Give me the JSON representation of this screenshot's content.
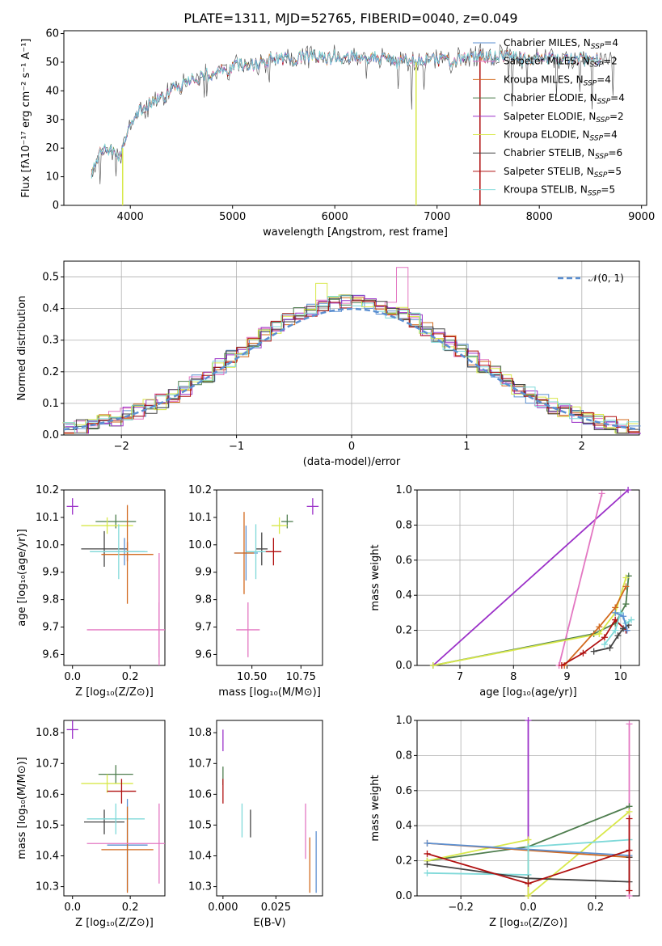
{
  "title": "PLATE=1311, MJD=52765, FIBERID=0040, z=0.049",
  "colors": {
    "chabrier_miles": "#5b8fd1",
    "salpeter_miles": "#e377c2",
    "kroupa_miles": "#d2691e",
    "chabrier_elodie": "#4e7d4e",
    "salpeter_elodie": "#9b30c8",
    "kroupa_elodie": "#d8e84a",
    "chabrier_stelib": "#444444",
    "salpeter_stelib": "#b01010",
    "kroupa_stelib": "#7fd9d9",
    "normal": "#5b8fd1"
  },
  "chart_data": [
    {
      "type": "line",
      "title": "PLATE=1311, MJD=52765, FIBERID=0040, z=0.049",
      "xlabel": "wavelength [Angstrom, rest frame]",
      "ylabel": "Flux [fλ10⁻¹⁷ erg cm⁻² s⁻¹ A⁻¹]",
      "xlim": [
        3350,
        9050
      ],
      "ylim": [
        0,
        61
      ],
      "xticks": [
        4000,
        5000,
        6000,
        7000,
        8000,
        9000
      ],
      "yticks": [
        0,
        10,
        20,
        30,
        40,
        50,
        60
      ],
      "legend_position": "top-right",
      "series": [
        {
          "name": "Chabrier MILES, N_SSP=4",
          "color_key": "chabrier_miles"
        },
        {
          "name": "Salpeter MILES, N_SSP=2",
          "color_key": "salpeter_miles"
        },
        {
          "name": "Kroupa MILES, N_SSP=4",
          "color_key": "kroupa_miles"
        },
        {
          "name": "Chabrier ELODIE, N_SSP=4",
          "color_key": "chabrier_elodie"
        },
        {
          "name": "Salpeter ELODIE, N_SSP=2",
          "color_key": "salpeter_elodie"
        },
        {
          "name": "Kroupa ELODIE, N_SSP=4",
          "color_key": "kroupa_elodie"
        },
        {
          "name": "Chabrier STELIB, N_SSP=6",
          "color_key": "chabrier_stelib"
        },
        {
          "name": "Salpeter STELIB, N_SSP=5",
          "color_key": "salpeter_stelib"
        },
        {
          "name": "Kroupa STELIB, N_SSP=5",
          "color_key": "kroupa_stelib"
        }
      ],
      "continuum": [
        [
          3620,
          12
        ],
        [
          3700,
          18
        ],
        [
          3800,
          20
        ],
        [
          3900,
          17
        ],
        [
          3950,
          23
        ],
        [
          4000,
          30
        ],
        [
          4100,
          33
        ],
        [
          4200,
          36
        ],
        [
          4300,
          37
        ],
        [
          4400,
          40
        ],
        [
          4500,
          42
        ],
        [
          4600,
          44
        ],
        [
          4700,
          45
        ],
        [
          4800,
          46
        ],
        [
          4900,
          47
        ],
        [
          5000,
          48
        ],
        [
          5100,
          49
        ],
        [
          5200,
          49
        ],
        [
          5300,
          50
        ],
        [
          5400,
          51
        ],
        [
          5500,
          51
        ],
        [
          5600,
          51
        ],
        [
          5700,
          52
        ],
        [
          5800,
          52
        ],
        [
          5900,
          51
        ],
        [
          6000,
          52
        ],
        [
          6100,
          52
        ],
        [
          6200,
          52
        ],
        [
          6300,
          52
        ],
        [
          6400,
          52
        ],
        [
          6500,
          51
        ],
        [
          6600,
          50
        ],
        [
          6700,
          51
        ],
        [
          6800,
          50
        ],
        [
          6900,
          51
        ],
        [
          7000,
          51
        ],
        [
          7100,
          50
        ],
        [
          7200,
          51
        ],
        [
          7300,
          51
        ],
        [
          7400,
          52
        ],
        [
          7500,
          52
        ],
        [
          7600,
          52
        ],
        [
          7700,
          52
        ],
        [
          7800,
          51
        ],
        [
          8000,
          51
        ],
        [
          8200,
          51
        ],
        [
          8400,
          51
        ],
        [
          8600,
          51
        ],
        [
          8750,
          50
        ]
      ],
      "dropouts": [
        {
          "x": 3925,
          "color_key": "kroupa_elodie"
        },
        {
          "x": 6795,
          "color_key": "kroupa_elodie"
        },
        {
          "x": 7420,
          "color_key": "salpeter_stelib"
        }
      ]
    },
    {
      "type": "line",
      "xlabel": "(data-model)/error",
      "ylabel": "Normed distribution",
      "xlim": [
        -2.5,
        2.5
      ],
      "ylim": [
        0,
        0.55
      ],
      "xticks": [
        -2,
        -1,
        0,
        1,
        2
      ],
      "yticks": [
        0.0,
        0.1,
        0.2,
        0.3,
        0.4,
        0.5
      ],
      "grid": true,
      "legend_position": "top-right",
      "normal_label": "𝒩(0, 1)",
      "bin_width": 0.1,
      "series_offsets": [
        0.012,
        -0.01,
        0.006,
        -0.004,
        0.014,
        -0.012,
        0.008,
        0.0,
        -0.006
      ],
      "highlight_bins": [
        {
          "x": 0.45,
          "value": 0.53,
          "color_key": "salpeter_miles"
        },
        {
          "x": -0.25,
          "value": 0.48,
          "color_key": "kroupa_elodie"
        }
      ]
    },
    {
      "type": "scatter",
      "xlabel": "Z [log₁₀(Z/Z⊙)]",
      "ylabel": "age  [log₁₀(age/yr)]",
      "xlim": [
        -0.03,
        0.32
      ],
      "ylim": [
        9.56,
        10.2
      ],
      "xticks": [
        0.0,
        0.2
      ],
      "yticks": [
        9.6,
        9.7,
        9.8,
        9.9,
        10.0,
        10.1,
        10.2
      ],
      "points": [
        {
          "x": 0.0,
          "y": 10.14,
          "xerr": 0.02,
          "yerr": 0.03,
          "c": "salpeter_elodie"
        },
        {
          "x": 0.15,
          "y": 10.085,
          "xerr": 0.07,
          "yerr": 0.025,
          "c": "chabrier_elodie"
        },
        {
          "x": 0.12,
          "y": 10.07,
          "xerr": 0.09,
          "yerr": 0.03,
          "c": "kroupa_elodie"
        },
        {
          "x": 0.11,
          "y": 9.985,
          "xerr": 0.08,
          "yerr": 0.065,
          "c": "chabrier_stelib"
        },
        {
          "x": 0.19,
          "y": 9.975,
          "xerr": 0.04,
          "yerr": 0.035,
          "c": "salpeter_stelib"
        },
        {
          "x": 0.18,
          "y": 9.975,
          "xerr": 0.07,
          "yerr": 0.05,
          "c": "chabrier_miles"
        },
        {
          "x": 0.19,
          "y": 9.965,
          "xerr": 0.09,
          "yerr": 0.18,
          "c": "kroupa_miles"
        },
        {
          "x": 0.16,
          "y": 9.975,
          "xerr": 0.1,
          "yerr": 0.1,
          "c": "kroupa_stelib"
        },
        {
          "x": 0.3,
          "y": 9.69,
          "xerr": 0.25,
          "yerr": 0.1,
          "c": "salpeter_miles"
        },
        {
          "x": 0.3,
          "y": 9.7,
          "xerr": 0.0,
          "yerr": 0.27,
          "c": "salpeter_miles"
        }
      ]
    },
    {
      "type": "scatter",
      "xlabel": "mass [log₁₀(M/M⊙)]",
      "ylabel": "",
      "xlim": [
        10.32,
        10.86
      ],
      "ylim": [
        9.56,
        10.2
      ],
      "xticks": [
        10.5,
        10.75
      ],
      "xticklabels": [
        "10.50",
        "10.75"
      ],
      "yticks": [
        9.6,
        9.7,
        9.8,
        9.9,
        10.0,
        10.1,
        10.2
      ],
      "points": [
        {
          "x": 10.81,
          "y": 10.14,
          "xerr": 0.03,
          "yerr": 0.03,
          "c": "salpeter_elodie"
        },
        {
          "x": 10.68,
          "y": 10.085,
          "xerr": 0.03,
          "yerr": 0.025,
          "c": "chabrier_elodie"
        },
        {
          "x": 10.64,
          "y": 10.07,
          "xerr": 0.04,
          "yerr": 0.03,
          "c": "kroupa_elodie"
        },
        {
          "x": 10.61,
          "y": 9.975,
          "xerr": 0.04,
          "yerr": 0.05,
          "c": "salpeter_stelib"
        },
        {
          "x": 10.55,
          "y": 9.985,
          "xerr": 0.03,
          "yerr": 0.06,
          "c": "chabrier_stelib"
        },
        {
          "x": 10.47,
          "y": 9.97,
          "xerr": 0.06,
          "yerr": 0.1,
          "c": "chabrier_miles"
        },
        {
          "x": 10.46,
          "y": 9.97,
          "xerr": 0.05,
          "yerr": 0.15,
          "c": "kroupa_miles"
        },
        {
          "x": 10.52,
          "y": 9.975,
          "xerr": 0.05,
          "yerr": 0.1,
          "c": "kroupa_stelib"
        },
        {
          "x": 10.48,
          "y": 9.69,
          "xerr": 0.06,
          "yerr": 0.1,
          "c": "salpeter_miles"
        }
      ]
    },
    {
      "type": "line",
      "xlabel": "age  [log₁₀(age/yr)]",
      "ylabel": "mass weight",
      "xlim": [
        6.2,
        10.35
      ],
      "ylim": [
        0,
        1.0
      ],
      "xticks": [
        7,
        8,
        9,
        10
      ],
      "yticks": [
        0.0,
        0.2,
        0.4,
        0.6,
        0.8,
        1.0
      ],
      "grid": true,
      "series": [
        {
          "c": "salpeter_elodie",
          "pts": [
            [
              6.5,
              0.0
            ],
            [
              10.14,
              1.0
            ]
          ]
        },
        {
          "c": "salpeter_miles",
          "pts": [
            [
              8.85,
              0.0
            ],
            [
              9.65,
              0.98
            ]
          ]
        },
        {
          "c": "chabrier_elodie",
          "pts": [
            [
              6.5,
              0.0
            ],
            [
              9.5,
              0.18
            ],
            [
              9.9,
              0.24
            ],
            [
              10.1,
              0.35
            ],
            [
              10.15,
              0.51
            ]
          ]
        },
        {
          "c": "kroupa_elodie",
          "pts": [
            [
              6.5,
              0.0
            ],
            [
              9.6,
              0.18
            ],
            [
              9.9,
              0.3
            ],
            [
              10.1,
              0.5
            ]
          ]
        },
        {
          "c": "kroupa_miles",
          "pts": [
            [
              8.95,
              0.0
            ],
            [
              9.6,
              0.22
            ],
            [
              9.9,
              0.33
            ],
            [
              10.1,
              0.45
            ]
          ]
        },
        {
          "c": "salpeter_stelib",
          "pts": [
            [
              8.9,
              0.0
            ],
            [
              9.3,
              0.07
            ],
            [
              9.7,
              0.16
            ],
            [
              9.9,
              0.26
            ],
            [
              10.1,
              0.2
            ]
          ]
        },
        {
          "c": "chabrier_stelib",
          "pts": [
            [
              9.5,
              0.08
            ],
            [
              9.8,
              0.1
            ],
            [
              9.95,
              0.17
            ],
            [
              10.05,
              0.21
            ],
            [
              10.15,
              0.23
            ]
          ]
        },
        {
          "c": "kroupa_stelib",
          "pts": [
            [
              9.7,
              0.12
            ],
            [
              9.9,
              0.2
            ],
            [
              10.0,
              0.3
            ],
            [
              10.1,
              0.24
            ],
            [
              10.2,
              0.26
            ]
          ]
        },
        {
          "c": "chabrier_miles",
          "pts": [
            [
              9.9,
              0.3
            ],
            [
              10.05,
              0.28
            ],
            [
              10.12,
              0.2
            ]
          ]
        }
      ]
    },
    {
      "type": "scatter",
      "xlabel": "Z [log₁₀(Z/Z⊙)]",
      "ylabel": "mass [log₁₀(M/M⊙)]",
      "xlim": [
        -0.03,
        0.32
      ],
      "ylim": [
        10.27,
        10.84
      ],
      "xticks": [
        0.0,
        0.2
      ],
      "yticks": [
        10.3,
        10.4,
        10.5,
        10.6,
        10.7,
        10.8
      ],
      "points": [
        {
          "x": 0.0,
          "y": 10.81,
          "xerr": 0.02,
          "yerr": 0.03,
          "c": "salpeter_elodie"
        },
        {
          "x": 0.15,
          "y": 10.665,
          "xerr": 0.06,
          "yerr": 0.03,
          "c": "chabrier_elodie"
        },
        {
          "x": 0.12,
          "y": 10.635,
          "xerr": 0.09,
          "yerr": 0.03,
          "c": "kroupa_elodie"
        },
        {
          "x": 0.17,
          "y": 10.61,
          "xerr": 0.05,
          "yerr": 0.04,
          "c": "salpeter_stelib"
        },
        {
          "x": 0.11,
          "y": 10.51,
          "xerr": 0.07,
          "yerr": 0.04,
          "c": "chabrier_stelib"
        },
        {
          "x": 0.15,
          "y": 10.52,
          "xerr": 0.1,
          "yerr": 0.05,
          "c": "kroupa_stelib"
        },
        {
          "x": 0.19,
          "y": 10.435,
          "xerr": 0.07,
          "yerr": 0.15,
          "c": "chabrier_miles"
        },
        {
          "x": 0.19,
          "y": 10.42,
          "xerr": 0.09,
          "yerr": 0.14,
          "c": "kroupa_miles"
        },
        {
          "x": 0.3,
          "y": 10.44,
          "xerr": 0.25,
          "yerr": 0.13,
          "c": "salpeter_miles"
        }
      ]
    },
    {
      "type": "scatter",
      "xlabel": "E(B-V)",
      "ylabel": "",
      "xlim": [
        -0.003,
        0.047
      ],
      "ylim": [
        10.27,
        10.84
      ],
      "xticks": [
        0.0,
        0.025
      ],
      "xticklabels": [
        "0.000",
        "0.025"
      ],
      "yticks": [
        10.3,
        10.4,
        10.5,
        10.6,
        10.7,
        10.8
      ],
      "points": [
        {
          "x": 0.0,
          "y": 10.775,
          "yerr": 0.035,
          "c": "salpeter_elodie"
        },
        {
          "x": 0.0,
          "y": 10.66,
          "yerr": 0.03,
          "c": "chabrier_elodie"
        },
        {
          "x": 0.0,
          "y": 10.61,
          "yerr": 0.04,
          "c": "salpeter_stelib"
        },
        {
          "x": 0.009,
          "y": 10.515,
          "yerr": 0.055,
          "c": "kroupa_stelib"
        },
        {
          "x": 0.013,
          "y": 10.505,
          "yerr": 0.045,
          "c": "chabrier_stelib"
        },
        {
          "x": 0.039,
          "y": 10.48,
          "yerr": 0.09,
          "c": "salpeter_miles"
        },
        {
          "x": 0.041,
          "y": 10.37,
          "yerr": 0.09,
          "c": "kroupa_miles"
        },
        {
          "x": 0.044,
          "y": 10.38,
          "yerr": 0.1,
          "c": "chabrier_miles"
        }
      ]
    },
    {
      "type": "line",
      "xlabel": "Z [log₁₀(Z/Z⊙)]",
      "ylabel": "mass weight",
      "xlim": [
        -0.33,
        0.33
      ],
      "ylim": [
        0,
        1.0
      ],
      "xticks": [
        -0.2,
        0.0,
        0.2
      ],
      "xticklabels": [
        "−0.2",
        "0.0",
        "0.2"
      ],
      "yticks": [
        0.0,
        0.2,
        0.4,
        0.6,
        0.8,
        1.0
      ],
      "grid": true,
      "series": [
        {
          "c": "salpeter_elodie",
          "pts": [
            [
              0.0,
              0.0
            ],
            [
              0.0,
              1.0
            ]
          ]
        },
        {
          "c": "salpeter_miles",
          "pts": [
            [
              0.3,
              0.0
            ],
            [
              0.3,
              0.98
            ]
          ]
        },
        {
          "c": "chabrier_elodie",
          "pts": [
            [
              -0.3,
              0.2
            ],
            [
              0.0,
              0.28
            ],
            [
              0.3,
              0.51
            ]
          ]
        },
        {
          "c": "kroupa_elodie",
          "pts": [
            [
              -0.3,
              0.2
            ],
            [
              0.0,
              0.32
            ],
            [
              0.0,
              0.0
            ],
            [
              0.3,
              0.48
            ]
          ]
        },
        {
          "c": "kroupa_miles",
          "pts": [
            [
              -0.3,
              0.3
            ],
            [
              0.3,
              0.22
            ]
          ]
        },
        {
          "c": "chabrier_miles",
          "pts": [
            [
              -0.3,
              0.3
            ],
            [
              0.3,
              0.23
            ]
          ]
        },
        {
          "c": "kroupa_stelib",
          "pts": [
            [
              -0.3,
              0.13
            ],
            [
              0.0,
              0.12
            ],
            [
              0.0,
              0.28
            ],
            [
              0.3,
              0.32
            ]
          ]
        },
        {
          "c": "chabrier_stelib",
          "pts": [
            [
              -0.3,
              0.18
            ],
            [
              0.0,
              0.1
            ],
            [
              0.3,
              0.08
            ],
            [
              0.3,
              0.22
            ]
          ]
        },
        {
          "c": "salpeter_stelib",
          "pts": [
            [
              -0.3,
              0.24
            ],
            [
              0.0,
              0.07
            ],
            [
              0.3,
              0.26
            ],
            [
              0.3,
              0.44
            ],
            [
              0.3,
              0.03
            ]
          ]
        }
      ]
    }
  ]
}
